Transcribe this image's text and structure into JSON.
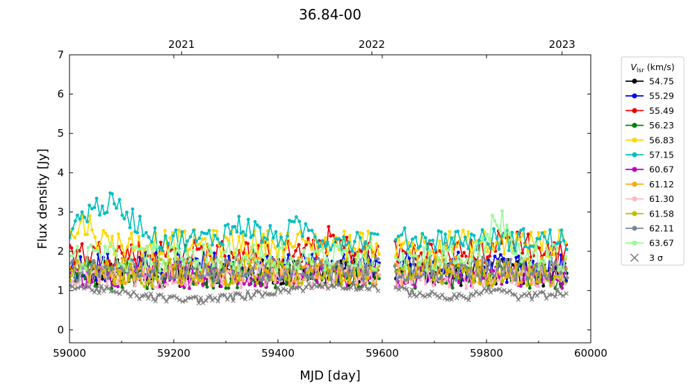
{
  "chart_data": {
    "type": "line",
    "title": "36.84-00",
    "xlabel": "MJD [day]",
    "ylabel": "Flux density [Jy]",
    "xlim": [
      59000,
      60000
    ],
    "ylim": [
      -0.33,
      7.0
    ],
    "xticks": [
      59000,
      59200,
      59400,
      59600,
      59800,
      60000
    ],
    "xtick_labels": [
      "59000",
      "59200",
      "59400",
      "59600",
      "59800",
      "60000"
    ],
    "yticks": [
      0,
      1,
      2,
      3,
      4,
      5,
      6,
      7
    ],
    "ytick_labels": [
      "0",
      "1",
      "2",
      "3",
      "4",
      "5",
      "6",
      "7"
    ],
    "top_axis": {
      "ticks": [
        59215,
        59580,
        59945
      ],
      "labels": [
        "2021",
        "2022",
        "2023"
      ]
    },
    "grid": false,
    "legend": {
      "placement": "outside-right",
      "title_main": "V",
      "title_sub": "lsr",
      "title_unit": " (km/s)",
      "sigma_label": "3 σ"
    },
    "gap": [
      59595,
      59624
    ],
    "series": [
      {
        "name": "54.75",
        "color": "#000000",
        "base": 1.45,
        "amp": 0.35,
        "start": 59000,
        "end": 59955
      },
      {
        "name": "55.29",
        "color": "#0000ee",
        "base": 1.6,
        "amp": 0.4,
        "start": 59000,
        "end": 59955
      },
      {
        "name": "55.49",
        "color": "#ee0000",
        "base": 1.95,
        "amp": 0.35,
        "start": 59000,
        "end": 59955
      },
      {
        "name": "56.23",
        "color": "#007f00",
        "base": 1.4,
        "amp": 0.35,
        "start": 59000,
        "end": 59955
      },
      {
        "name": "56.83",
        "color": "#ffd700",
        "base": 2.2,
        "amp": 0.35,
        "start": 59000,
        "end": 59955
      },
      {
        "name": "57.15",
        "color": "#00bfbf",
        "base": 2.3,
        "amp": 0.3,
        "start": 59000,
        "end": 59955
      },
      {
        "name": "60.67",
        "color": "#bf00bf",
        "base": 1.35,
        "amp": 0.3,
        "start": 59000,
        "end": 59955
      },
      {
        "name": "61.12",
        "color": "#ffa500",
        "base": 1.5,
        "amp": 0.35,
        "start": 59000,
        "end": 59955
      },
      {
        "name": "61.30",
        "color": "#ffb6c1",
        "base": 1.35,
        "amp": 0.3,
        "start": 59000,
        "end": 59955
      },
      {
        "name": "61.58",
        "color": "#bfbf00",
        "base": 1.45,
        "amp": 0.35,
        "start": 59000,
        "end": 59955
      },
      {
        "name": "62.11",
        "color": "#778899",
        "base": 1.55,
        "amp": 0.3,
        "start": 59000,
        "end": 59955
      },
      {
        "name": "63.67",
        "color": "#98fb98",
        "base": 1.85,
        "amp": 0.35,
        "start": 59000,
        "end": 59955
      }
    ],
    "sigma": {
      "name": "3 σ",
      "color": "#808080",
      "base": 0.95
    }
  }
}
